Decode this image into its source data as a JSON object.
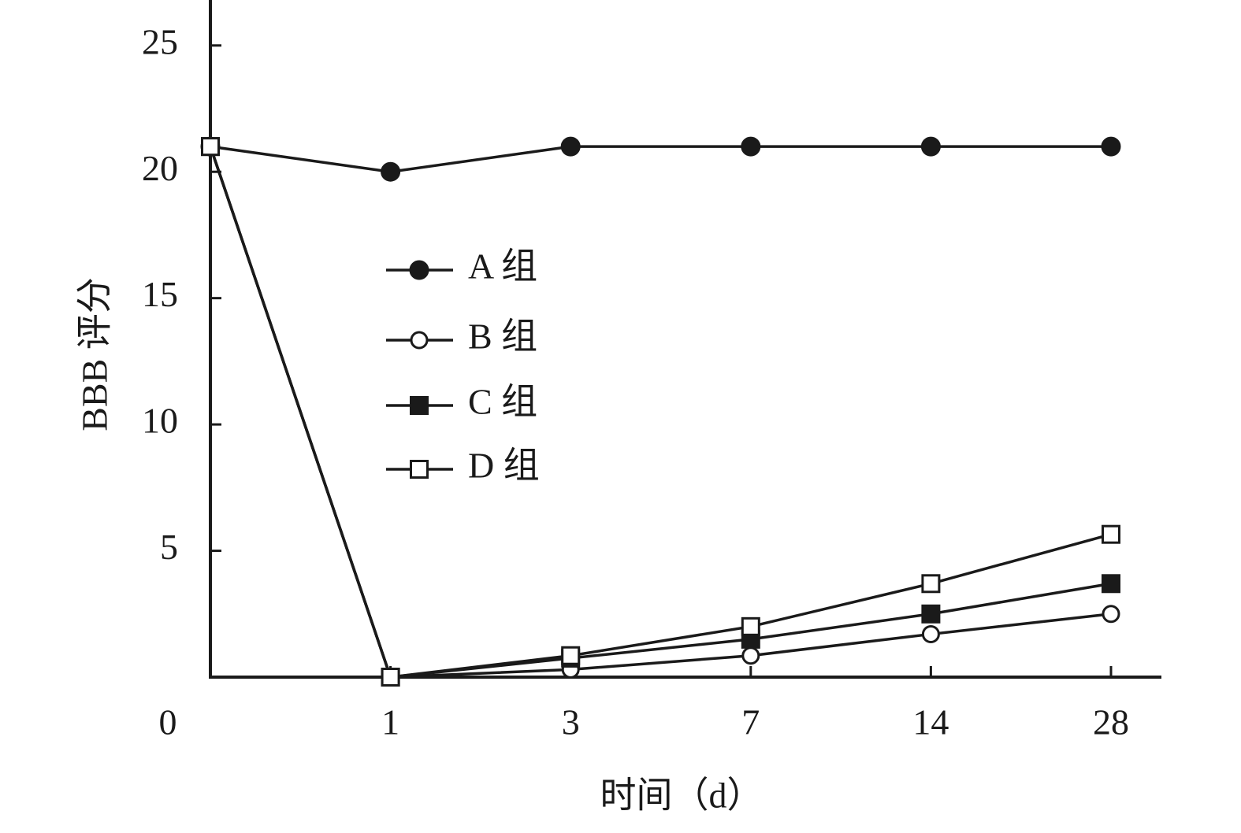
{
  "chart_data": {
    "type": "line",
    "x_label": "时间（d）",
    "y_label": "BBB 评分",
    "categories": [
      "0",
      "1",
      "3",
      "7",
      "14",
      "28"
    ],
    "series": [
      {
        "name": "A 组",
        "color": "#1a1a1a",
        "marker": "filled-circle",
        "values": [
          21,
          20,
          21,
          21,
          21,
          21
        ]
      },
      {
        "name": "B 组",
        "color": "#1a1a1a",
        "marker": "open-circle",
        "values": [
          21,
          0,
          0.3,
          0.85,
          1.7,
          2.5
        ]
      },
      {
        "name": "C 组",
        "color": "#1a1a1a",
        "marker": "filled-square",
        "values": [
          21,
          0,
          0.75,
          1.5,
          2.5,
          3.7
        ]
      },
      {
        "name": "D 组",
        "color": "#1a1a1a",
        "marker": "open-square",
        "values": [
          21,
          0,
          0.85,
          2.0,
          3.7,
          5.65
        ]
      }
    ],
    "ylim": [
      0,
      26.8
    ],
    "yticks": [
      5,
      10,
      15,
      20,
      25
    ],
    "grid": false
  }
}
